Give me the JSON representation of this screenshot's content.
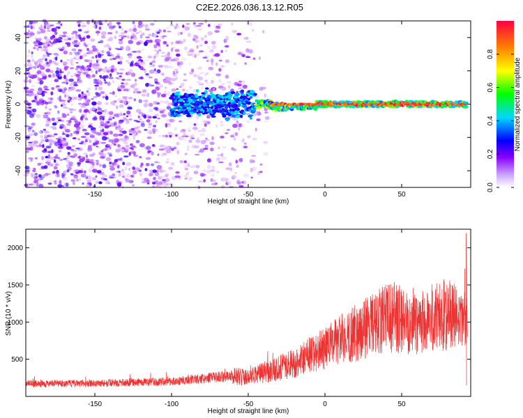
{
  "title": "C2E2.2026.036.13.12.R05",
  "chart_data": [
    {
      "type": "heatmap",
      "xlabel": "Height of straight line (km)",
      "ylabel": "Frequency (Hz)",
      "xlim": [
        -195,
        95
      ],
      "ylim": [
        -50,
        50
      ],
      "xticks": [
        -150,
        -100,
        -50,
        0,
        50
      ],
      "yticks": [
        -40,
        -20,
        0,
        20,
        40
      ],
      "xtick_labels": [
        "-150",
        "-100",
        "-50",
        "0",
        "50"
      ],
      "ytick_labels": [
        "-40",
        "-20",
        "0",
        "20",
        "40"
      ],
      "colorbar": {
        "label": "Normalized spectral amplitude",
        "range": [
          0,
          1
        ],
        "ticks": [
          0.0,
          0.2,
          0.4,
          0.6,
          0.8
        ],
        "tick_labels": [
          "0.0",
          "0.2",
          "0.4",
          "0.6",
          "0.8"
        ],
        "colors": [
          "#ffffff",
          "#8a00ff",
          "#0000ff",
          "#00d8ff",
          "#00ff00",
          "#ffff00",
          "#ff8000",
          "#ff0040"
        ]
      },
      "signal_band": {
        "center_frequency": 0,
        "start_height": -100,
        "end_height": 92,
        "noise_region": [
          -195,
          -45
        ]
      }
    },
    {
      "type": "line",
      "xlabel": "Height of straight line (km)",
      "ylabel": "SNR (10 * v/v)",
      "xlim": [
        -195,
        95
      ],
      "ylim": [
        0,
        2250
      ],
      "xticks": [
        -150,
        -100,
        -50,
        0,
        50
      ],
      "yticks": [
        500,
        1000,
        1500,
        2000
      ],
      "xtick_labels": [
        "-150",
        "-100",
        "-50",
        "0",
        "50"
      ],
      "ytick_labels": [
        "500",
        "1000",
        "1500",
        "2000"
      ],
      "line_color": "#ee3333",
      "trend": {
        "x": [
          -195,
          -150,
          -100,
          -80,
          -60,
          -50,
          -40,
          -30,
          -20,
          -10,
          0,
          10,
          20,
          30,
          40,
          50,
          60,
          70,
          80,
          90
        ],
        "y": [
          170,
          175,
          200,
          240,
          280,
          250,
          320,
          380,
          450,
          560,
          650,
          760,
          850,
          950,
          1050,
          1050,
          1000,
          1050,
          1100,
          1000
        ]
      }
    }
  ]
}
